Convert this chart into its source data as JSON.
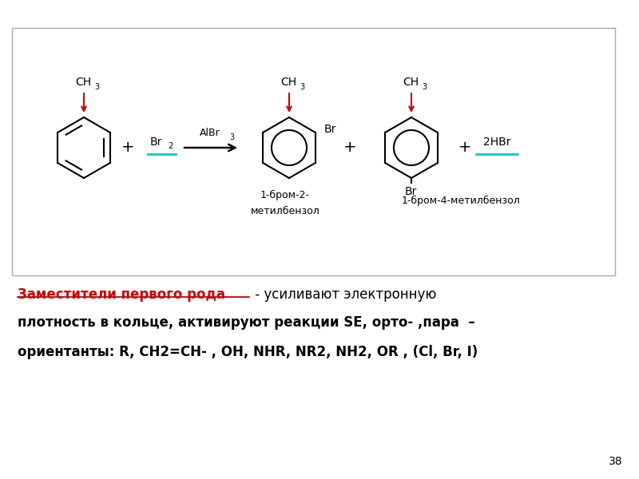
{
  "bg_color": "#ffffff",
  "box_color": "#aaaaaa",
  "red_color": "#cc0000",
  "cyan_color": "#00cccc",
  "text_color": "#000000",
  "page_number": "38",
  "bold_underline_text": "Заместители первого рода",
  "text_line1_suffix": " - усиливают электронную",
  "text_line2": "плотность в кольце, активируют реакции SE, орто- ,пара  –",
  "text_line3": "ориентанты: R, CH2=CH- , OH, NHR, NR2, NH2, OR , (Cl, Br, I)",
  "mol1_label_ch": "CH",
  "mol1_label_3": "3",
  "br2_label": "Br",
  "br2_sub": "2",
  "albr3_label": "AlBr",
  "albr3_sub": "3",
  "mol2_br_label": "Br",
  "mol2_name_line1": "1-бром-2-",
  "mol2_name_line2": "метилбензол",
  "mol3_br_label": "Br",
  "mol3_name": "1-бром-4-метилбензол",
  "hbr_label": "2HBr",
  "plus_sign": "+"
}
